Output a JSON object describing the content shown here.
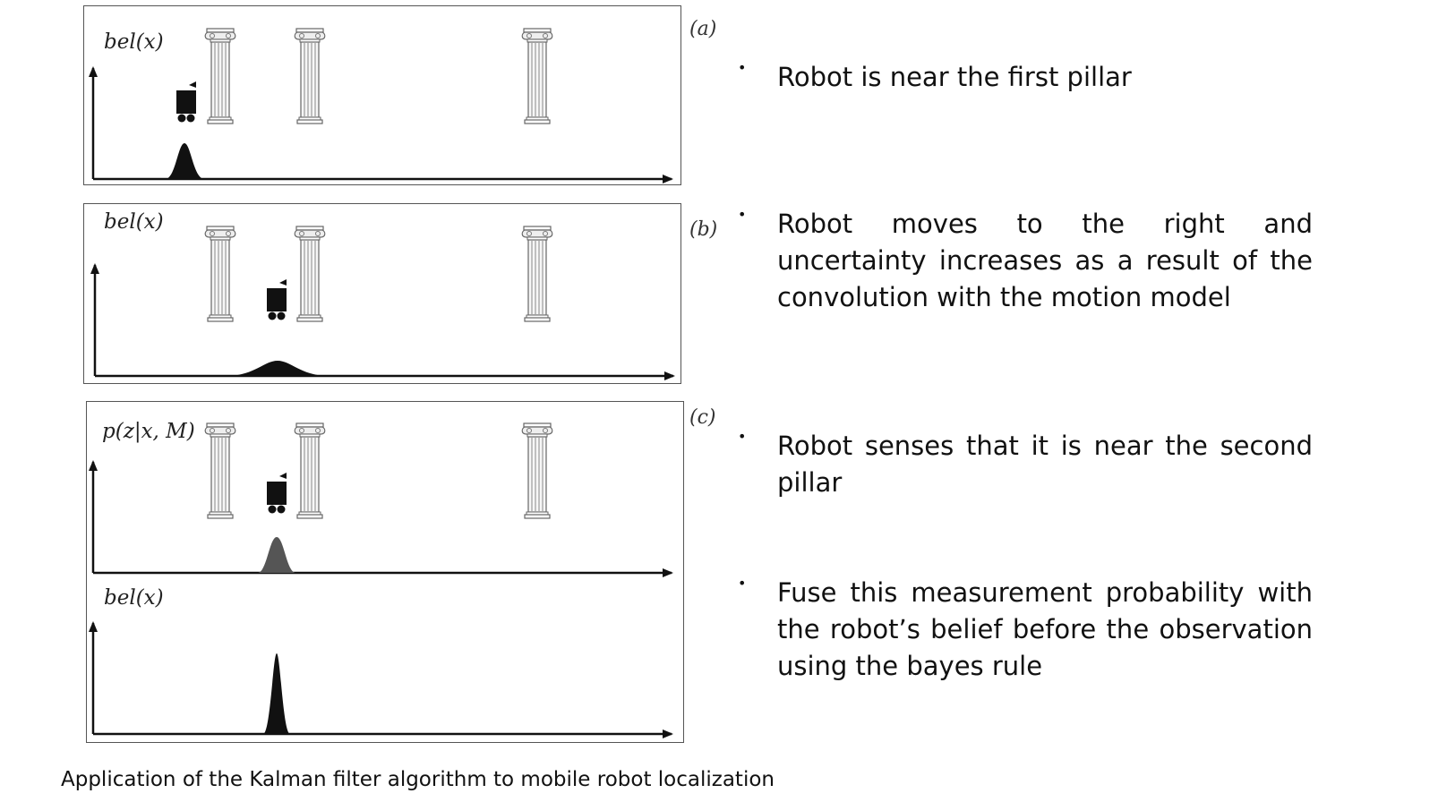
{
  "panels": [
    {
      "letter": "(a)",
      "label": "bel(x)"
    },
    {
      "letter": "(b)",
      "label": "bel(x)"
    },
    {
      "letter": "(c)",
      "label": "p(z|x, M)",
      "label2": "bel(x)"
    }
  ],
  "bullets": [
    "Robot is near the first pillar",
    "Robot moves to the right and uncertainty increases as a result of the convolution with the motion model",
    "Robot senses that it is near the second pillar",
    "Fuse this measurement probability with the robot’s belief before the observation using the bayes rule"
  ],
  "caption": "Application of the Kalman filter algorithm to mobile robot localization",
  "icons": [
    "pillar-icon",
    "robot-icon"
  ]
}
